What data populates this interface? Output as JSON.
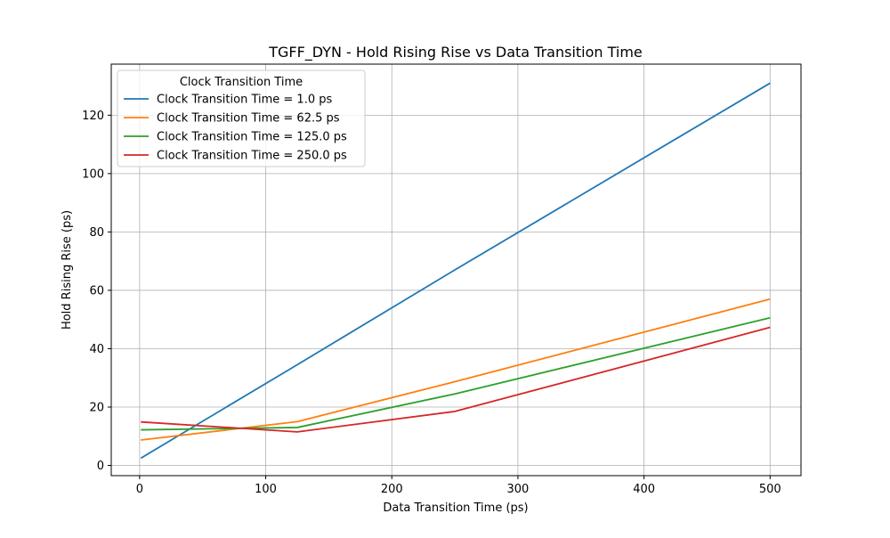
{
  "chart_data": {
    "type": "line",
    "title": "TGFF_DYN - Hold Rising Rise vs Data Transition Time",
    "xlabel": "Data Transition Time (ps)",
    "ylabel": "Hold Rising Rise (ps)",
    "xlim": [
      -22.5,
      524.5
    ],
    "ylim": [
      -3.5,
      137.5
    ],
    "xticks": [
      0,
      100,
      200,
      300,
      400,
      500
    ],
    "yticks": [
      0,
      20,
      40,
      60,
      80,
      100,
      120
    ],
    "grid": true,
    "legend_title": "Clock Transition Time",
    "legend_position": "upper left",
    "x": [
      1,
      125,
      250,
      500
    ],
    "series": [
      {
        "name": "Clock Transition Time = 1.0 ps",
        "color": "#1f77b4",
        "values": [
          2.5,
          34.5,
          67.0,
          131.0
        ]
      },
      {
        "name": "Clock Transition Time = 62.5 ps",
        "color": "#ff7f0e",
        "values": [
          8.7,
          15.0,
          28.7,
          57.0
        ]
      },
      {
        "name": "Clock Transition Time = 125.0 ps",
        "color": "#2ca02c",
        "values": [
          12.2,
          13.0,
          24.5,
          50.6
        ]
      },
      {
        "name": "Clock Transition Time = 250.0 ps",
        "color": "#d62728",
        "values": [
          14.9,
          11.5,
          18.5,
          47.3
        ]
      }
    ]
  }
}
